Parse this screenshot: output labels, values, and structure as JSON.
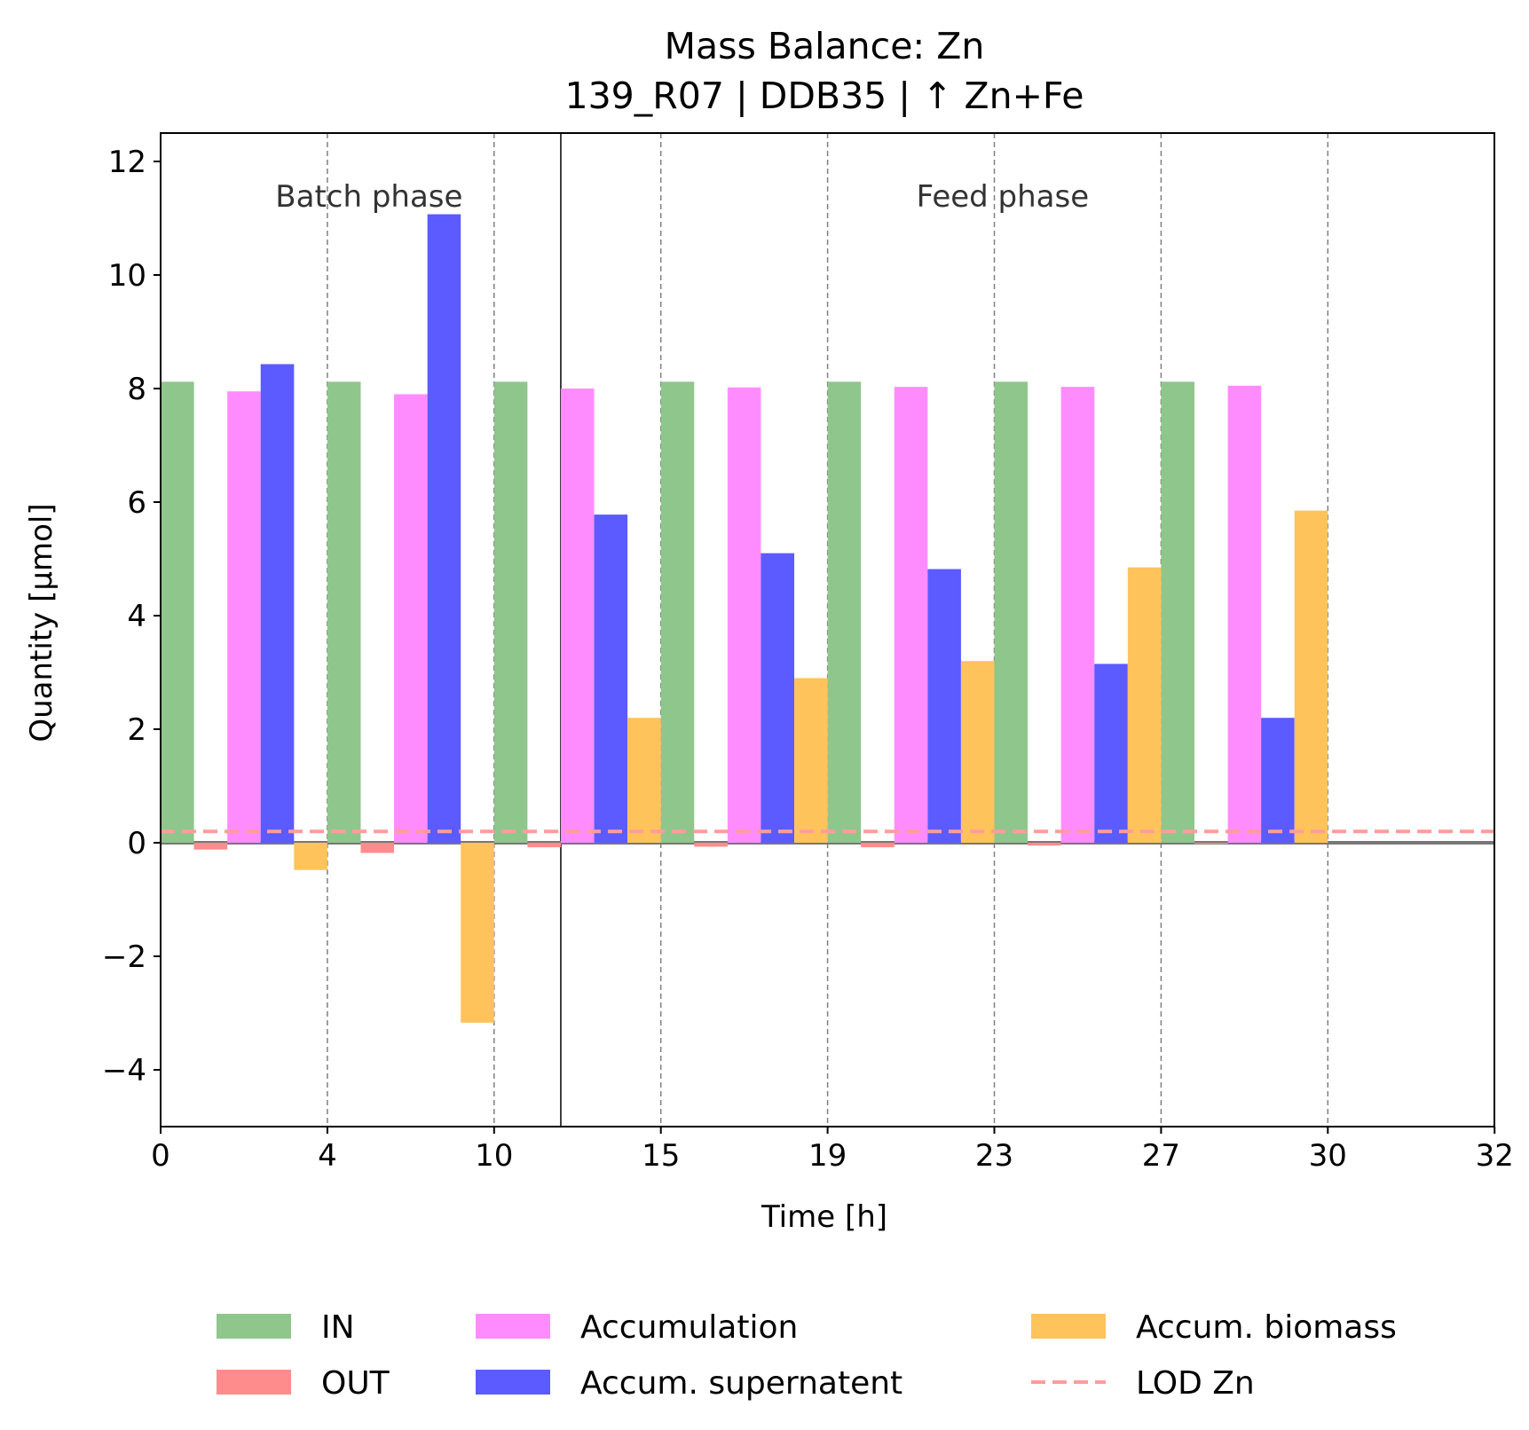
{
  "chart_data": {
    "type": "bar",
    "title": "Mass Balance: Zn",
    "subtitle": "139_R07  |  DDB35  |  ↑ Zn+Fe",
    "xlabel": "Time [h]",
    "ylabel": "Quantity [µmol]",
    "ylim": [
      -5,
      12.5
    ],
    "xtick_labels": [
      "0",
      "4",
      "10",
      "15",
      "19",
      "23",
      "27",
      "30",
      "32"
    ],
    "ytick_values": [
      -4,
      -2,
      0,
      2,
      4,
      6,
      8,
      10,
      12
    ],
    "ytick_labels": [
      "−4",
      "−2",
      "0",
      "2",
      "4",
      "6",
      "8",
      "10",
      "12"
    ],
    "grid": "vertical dashed at x ticks",
    "legend_placement": "bottom-center, below axes, 3 columns",
    "lod_value": 0.2,
    "phase_labels": [
      "Batch phase",
      "Feed phase"
    ],
    "intervals": [
      "0–4",
      "4–10",
      "10–15",
      "15–19",
      "19–23",
      "23–27",
      "27–30",
      "30–32"
    ],
    "series": [
      {
        "name": "IN",
        "color": "#8fc68c",
        "values": [
          8.12,
          8.12,
          8.12,
          8.12,
          8.12,
          8.12,
          8.12,
          0
        ]
      },
      {
        "name": "OUT",
        "color": "#ff8c8c",
        "values": [
          -0.12,
          -0.18,
          -0.08,
          -0.07,
          -0.08,
          -0.05,
          -0.02,
          0
        ]
      },
      {
        "name": "Accumulation",
        "color": "#ff8cff",
        "values": [
          7.95,
          7.9,
          8.0,
          8.02,
          8.03,
          8.03,
          8.05,
          0
        ]
      },
      {
        "name": "Accum. supernatent",
        "color": "#5b5bff",
        "values": [
          8.43,
          11.07,
          5.78,
          5.1,
          4.82,
          3.15,
          2.2,
          0
        ]
      },
      {
        "name": "Accum. biomass",
        "color": "#ffc35c",
        "values": [
          -0.48,
          -3.17,
          2.2,
          2.9,
          3.2,
          4.85,
          5.85,
          0
        ]
      }
    ],
    "lod_series": {
      "name": "LOD Zn",
      "color": "#ff9c9c"
    }
  }
}
